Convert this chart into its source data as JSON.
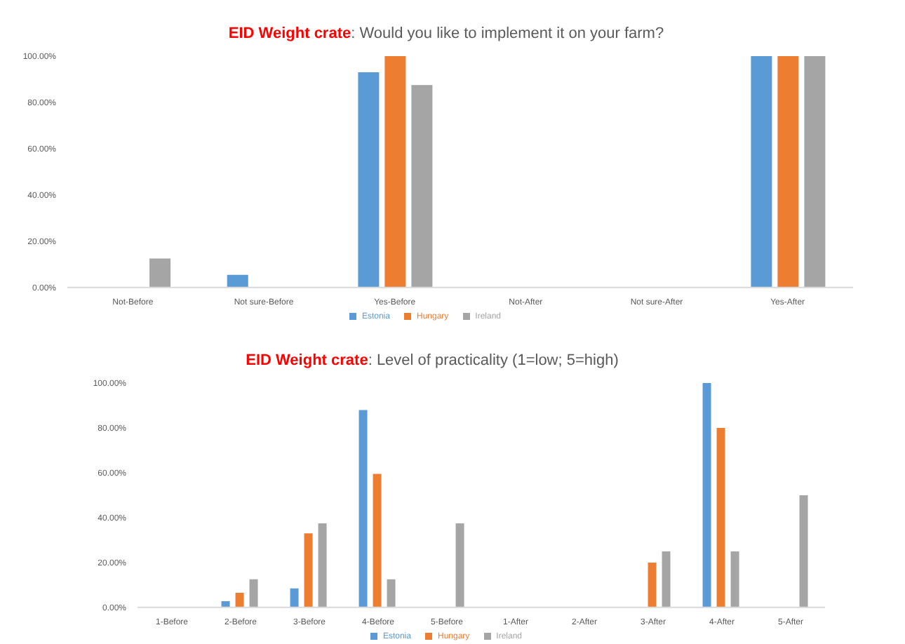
{
  "chart_data": [
    {
      "type": "bar",
      "title": "EID Weight crate: Would you like to implement it on your farm?",
      "categories": [
        "Not-Before",
        "Not sure-Before",
        "Yes-Before",
        "Not-After",
        "Not sure-After",
        "Yes-After"
      ],
      "series": [
        {
          "name": "Estonia",
          "color": "#5b9bd5",
          "values": [
            0,
            5.5,
            93,
            0,
            0,
            100
          ]
        },
        {
          "name": "Hungary",
          "color": "#ed7d31",
          "values": [
            0,
            0,
            100,
            0,
            0,
            100
          ]
        },
        {
          "name": "Ireland",
          "color": "#a5a5a5",
          "values": [
            12.5,
            0,
            87.5,
            0,
            0,
            100
          ]
        }
      ],
      "ylim": [
        0,
        100
      ],
      "yticks": [
        {
          "value": 0,
          "label": "0.00%"
        },
        {
          "value": 20,
          "label": "20.00%"
        },
        {
          "value": 40,
          "label": "40.00%"
        },
        {
          "value": 60,
          "label": "60.00%"
        },
        {
          "value": 80,
          "label": "80.00%"
        },
        {
          "value": 100,
          "label": "100.00%"
        }
      ],
      "grid": false,
      "legend": "bottom"
    },
    {
      "type": "bar",
      "title": "EID Weight crate: Level of practicality (1=low; 5=high)",
      "categories": [
        "1-Before",
        "2-Before",
        "3-Before",
        "4-Before",
        "5-Before",
        "1-After",
        "2-After",
        "3-After",
        "4-After",
        "5-After"
      ],
      "series": [
        {
          "name": "Estonia",
          "color": "#5b9bd5",
          "values": [
            0,
            2.8,
            8.5,
            88,
            0,
            0,
            0,
            0,
            100,
            0
          ]
        },
        {
          "name": "Hungary",
          "color": "#ed7d31",
          "values": [
            0,
            6.5,
            33,
            59.5,
            0,
            0,
            0,
            20,
            80,
            0
          ]
        },
        {
          "name": "Ireland",
          "color": "#a5a5a5",
          "values": [
            0,
            12.5,
            37.5,
            12.5,
            37.5,
            0,
            0,
            25,
            25,
            50
          ]
        }
      ],
      "ylim": [
        0,
        100
      ],
      "yticks": [
        {
          "value": 0,
          "label": "0.00%"
        },
        {
          "value": 20,
          "label": "20.00%"
        },
        {
          "value": 40,
          "label": "40.00%"
        },
        {
          "value": 60,
          "label": "60.00%"
        },
        {
          "value": 80,
          "label": "80.00%"
        },
        {
          "value": 100,
          "label": "100.00%"
        }
      ],
      "grid": false,
      "legend": "bottom"
    }
  ]
}
